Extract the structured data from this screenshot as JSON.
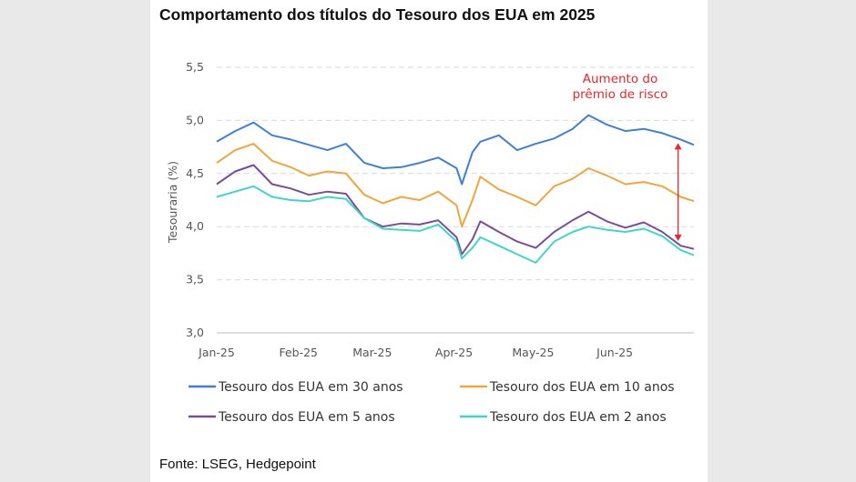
{
  "chart_data": {
    "type": "line",
    "title": "Comportamento dos títulos do Tesouro dos EUA em 2025",
    "ylabel": "Tesouraria (%)",
    "ylim": [
      3.0,
      5.5
    ],
    "yticks": [
      "3,0",
      "3,5",
      "4,0",
      "4,5",
      "5,0",
      "5,5"
    ],
    "xticks": [
      "Jan-25",
      "Feb-25",
      "Mar-25",
      "Apr-25",
      "May-25",
      "Jun-25"
    ],
    "x": [
      "2025-01-01",
      "2025-01-08",
      "2025-01-15",
      "2025-01-22",
      "2025-01-29",
      "2025-02-05",
      "2025-02-12",
      "2025-02-19",
      "2025-02-26",
      "2025-03-05",
      "2025-03-12",
      "2025-03-19",
      "2025-03-26",
      "2025-04-02",
      "2025-04-04",
      "2025-04-08",
      "2025-04-11",
      "2025-04-18",
      "2025-04-25",
      "2025-05-02",
      "2025-05-09",
      "2025-05-16",
      "2025-05-22",
      "2025-05-29",
      "2025-06-05",
      "2025-06-12",
      "2025-06-19",
      "2025-06-26",
      "2025-07-01"
    ],
    "grid": "horizontal dashed",
    "legend_position": "bottom",
    "series": [
      {
        "name": "Tesouro dos EUA em 30 anos",
        "color": "#3f7fd8",
        "values": [
          4.8,
          4.9,
          4.98,
          4.86,
          4.82,
          4.77,
          4.72,
          4.78,
          4.6,
          4.55,
          4.56,
          4.6,
          4.65,
          4.55,
          4.4,
          4.7,
          4.8,
          4.86,
          4.72,
          4.78,
          4.83,
          4.92,
          5.05,
          4.96,
          4.9,
          4.92,
          4.88,
          4.82,
          4.77
        ]
      },
      {
        "name": "Tesouro dos EUA em 10 anos",
        "color": "#f0a63b",
        "values": [
          4.6,
          4.72,
          4.78,
          4.62,
          4.56,
          4.48,
          4.52,
          4.5,
          4.3,
          4.22,
          4.28,
          4.25,
          4.33,
          4.2,
          4.0,
          4.25,
          4.47,
          4.35,
          4.28,
          4.2,
          4.38,
          4.45,
          4.55,
          4.48,
          4.4,
          4.42,
          4.38,
          4.28,
          4.24
        ]
      },
      {
        "name": "Tesouro dos EUA em 5 anos",
        "color": "#7c4c99",
        "values": [
          4.4,
          4.52,
          4.58,
          4.4,
          4.36,
          4.3,
          4.33,
          4.31,
          4.08,
          4.0,
          4.03,
          4.02,
          4.06,
          3.9,
          3.74,
          3.88,
          4.05,
          3.95,
          3.86,
          3.8,
          3.95,
          4.06,
          4.14,
          4.05,
          3.99,
          4.04,
          3.95,
          3.82,
          3.79
        ]
      },
      {
        "name": "Tesouro dos EUA em 2 anos",
        "color": "#3fd6c8",
        "values": [
          4.28,
          4.33,
          4.38,
          4.28,
          4.25,
          4.24,
          4.28,
          4.26,
          4.08,
          3.98,
          3.97,
          3.96,
          4.02,
          3.86,
          3.7,
          3.8,
          3.9,
          3.82,
          3.74,
          3.66,
          3.86,
          3.95,
          4.0,
          3.97,
          3.95,
          3.98,
          3.91,
          3.78,
          3.73
        ]
      }
    ],
    "annotation": {
      "lines": [
        "Aumento do",
        "prêmio de risco"
      ],
      "color": "#e8282b",
      "from": {
        "series": "Tesouro dos EUA em 30 anos",
        "x": "2025-06-25"
      },
      "to": {
        "series": "Tesouro dos EUA em 5 anos",
        "x": "2025-06-25"
      }
    }
  },
  "source": "Fonte: LSEG, Hedgepoint"
}
